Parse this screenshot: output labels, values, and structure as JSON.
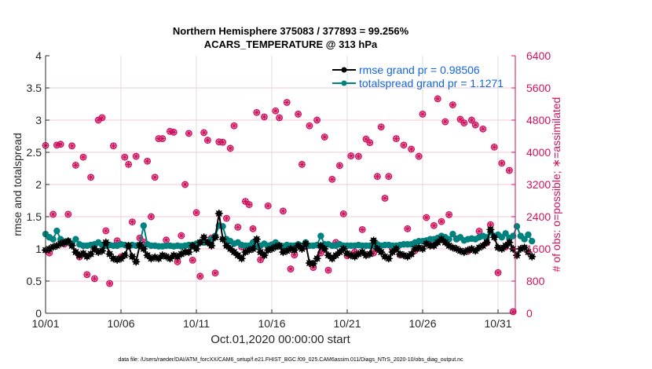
{
  "chart_data": {
    "type": "line",
    "title": "Northern Hemisphere 375083 / 377893 = 99.256%",
    "subtitle": "ACARS_TEMPERATURE @ 313 hPa",
    "xlabel": "Oct.01,2020 00:00:00 start",
    "ylabel": "rmse and totalspread",
    "y2label": "# of obs: o=possible; ∗=assimilated",
    "footer": "data file: /Users/raeder/DAI/ATM_forcXX/CAM6_setup/f.e21.FHIST_BGC.f09_025.CAM6assim.011/Diags_NTrS_2020-10/obs_diag_output.nc",
    "xlim_days": [
      1,
      32.1
    ],
    "ylim": [
      0,
      4
    ],
    "y2lim": [
      0,
      6400
    ],
    "x_ticks": [
      {
        "day": 1,
        "label": "10/01"
      },
      {
        "day": 6,
        "label": "10/06"
      },
      {
        "day": 11,
        "label": "10/11"
      },
      {
        "day": 16,
        "label": "10/16"
      },
      {
        "day": 21,
        "label": "10/21"
      },
      {
        "day": 26,
        "label": "10/26"
      },
      {
        "day": 31,
        "label": "10/31"
      }
    ],
    "y_ticks": [
      "0",
      "0.5",
      "1",
      "1.5",
      "2",
      "2.5",
      "3",
      "3.5",
      "4"
    ],
    "y2_ticks": [
      "0",
      "800",
      "1600",
      "2400",
      "3200",
      "4000",
      "4800",
      "5600",
      "6400"
    ],
    "grid": true,
    "legend_position": "top-right",
    "time_step_days": 0.25,
    "start_day": 1,
    "series": [
      {
        "name": "rmse grand pr = 0.98506",
        "color": "#000000",
        "values": [
          0.98,
          1.0,
          1.03,
          1.05,
          1.08,
          1.1,
          1.12,
          1.05,
          0.95,
          0.9,
          0.93,
          0.88,
          0.92,
          1.0,
          0.95,
          0.97,
          1.1,
          0.92,
          0.85,
          0.83,
          0.85,
          0.9,
          1.05,
          0.88,
          0.8,
          1.06,
          1.0,
          0.9,
          0.85,
          0.87,
          0.85,
          0.9,
          0.88,
          0.85,
          0.9,
          0.88,
          0.92,
          0.95,
          0.95,
          1.05,
          1.0,
          1.1,
          1.18,
          1.1,
          1.05,
          1.18,
          1.55,
          1.15,
          1.05,
          1.0,
          0.95,
          0.9,
          0.85,
          0.95,
          0.98,
          1.0,
          1.15,
          0.95,
          0.9,
          0.98,
          1.0,
          1.03,
          1.05,
          0.95,
          0.97,
          1.0,
          0.98,
          1.05,
          1.0,
          1.08,
          0.78,
          0.77,
          0.85,
          1.05,
          1.0,
          0.9,
          0.85,
          0.9,
          0.95,
          1.0,
          0.93,
          0.9,
          0.88,
          0.92,
          0.95,
          0.9,
          0.92,
          1.13,
          1.0,
          0.95,
          0.88,
          0.85,
          0.95,
          1.0,
          0.92,
          0.9,
          0.88,
          0.92,
          1.0,
          1.02,
          1.0,
          1.08,
          1.05,
          1.05,
          1.1,
          1.15,
          1.1,
          1.05,
          1.02,
          1.0,
          0.97,
          0.95,
          0.98,
          1.0,
          0.97,
          1.02,
          1.05,
          1.1,
          1.3,
          1.18,
          1.02,
          1.0,
          1.05,
          1.1,
          1.0,
          0.9,
          1.0,
          1.02,
          0.95,
          0.88
        ]
      },
      {
        "name": "totalspread grand pr = 1.1271",
        "color": "#00827f",
        "values": [
          1.23,
          1.18,
          1.15,
          1.28,
          1.15,
          1.1,
          1.12,
          1.08,
          1.15,
          1.07,
          1.05,
          1.05,
          1.06,
          1.07,
          1.1,
          1.06,
          1.05,
          1.06,
          1.05,
          1.05,
          1.07,
          1.06,
          1.05,
          1.06,
          1.05,
          1.06,
          1.36,
          1.07,
          1.05,
          1.05,
          1.04,
          1.04,
          1.05,
          1.05,
          1.04,
          1.05,
          1.04,
          1.05,
          1.06,
          1.06,
          1.08,
          1.1,
          1.1,
          1.1,
          1.15,
          1.2,
          1.36,
          1.35,
          1.15,
          1.12,
          1.08,
          1.1,
          1.06,
          1.05,
          1.05,
          1.1,
          1.03,
          1.05,
          1.08,
          1.05,
          1.06,
          1.1,
          1.05,
          1.04,
          1.06,
          1.05,
          1.05,
          1.07,
          1.05,
          1.1,
          1.05,
          1.05,
          1.06,
          1.2,
          1.07,
          1.07,
          1.05,
          1.05,
          1.07,
          1.05,
          1.05,
          1.05,
          1.05,
          1.06,
          1.05,
          1.05,
          1.05,
          1.05,
          1.07,
          1.05,
          1.06,
          1.06,
          1.05,
          1.05,
          1.06,
          1.07,
          1.07,
          1.07,
          1.1,
          1.12,
          1.12,
          1.13,
          1.15,
          1.15,
          1.17,
          1.2,
          1.18,
          1.15,
          1.23,
          1.15,
          1.18,
          1.13,
          1.15,
          1.16,
          1.15,
          1.18,
          1.2,
          1.18,
          1.26,
          1.2,
          1.22,
          1.18,
          1.24,
          1.17,
          1.2,
          1.35,
          1.2,
          1.15,
          1.22,
          1.12
        ]
      }
    ],
    "obs_count_series": {
      "color": "#d0115e",
      "axis": "right",
      "points": [
        [
          1.0,
          4170
        ],
        [
          1.25,
          1500
        ],
        [
          1.5,
          2460
        ],
        [
          1.75,
          4180
        ],
        [
          2.0,
          4200
        ],
        [
          2.25,
          1720
        ],
        [
          2.5,
          2460
        ],
        [
          2.75,
          4160
        ],
        [
          3.0,
          3680
        ],
        [
          3.25,
          1400
        ],
        [
          3.5,
          3880
        ],
        [
          3.75,
          960
        ],
        [
          4.0,
          3380
        ],
        [
          4.25,
          860
        ],
        [
          4.5,
          4800
        ],
        [
          4.75,
          4860
        ],
        [
          5.0,
          2050
        ],
        [
          5.25,
          740
        ],
        [
          5.5,
          4160
        ],
        [
          5.75,
          1800
        ],
        [
          6.0,
          1400
        ],
        [
          6.25,
          3880
        ],
        [
          6.5,
          3700
        ],
        [
          6.75,
          2270
        ],
        [
          7.0,
          3900
        ],
        [
          7.25,
          1870
        ],
        [
          7.5,
          1770
        ],
        [
          7.75,
          3780
        ],
        [
          8.0,
          2400
        ],
        [
          8.25,
          3380
        ],
        [
          8.5,
          4340
        ],
        [
          8.75,
          4340
        ],
        [
          9.0,
          1820
        ],
        [
          9.25,
          4520
        ],
        [
          9.5,
          4500
        ],
        [
          9.75,
          1280
        ],
        [
          10.0,
          1930
        ],
        [
          10.25,
          3200
        ],
        [
          10.5,
          4470
        ],
        [
          10.75,
          1320
        ],
        [
          11.0,
          2500
        ],
        [
          11.25,
          920
        ],
        [
          11.5,
          4490
        ],
        [
          11.75,
          4300
        ],
        [
          12.0,
          1870
        ],
        [
          12.25,
          1000
        ],
        [
          12.5,
          4260
        ],
        [
          12.75,
          4250
        ],
        [
          13.0,
          2360
        ],
        [
          13.25,
          4100
        ],
        [
          13.5,
          4660
        ],
        [
          13.75,
          2140
        ],
        [
          14.0,
          1650
        ],
        [
          14.25,
          2780
        ],
        [
          14.5,
          2700
        ],
        [
          14.75,
          2100
        ],
        [
          15.0,
          4990
        ],
        [
          15.25,
          1330
        ],
        [
          15.5,
          4880
        ],
        [
          15.75,
          2670
        ],
        [
          16.0,
          1700
        ],
        [
          16.25,
          5030
        ],
        [
          16.5,
          4860
        ],
        [
          16.75,
          2540
        ],
        [
          17.0,
          5240
        ],
        [
          17.25,
          1100
        ],
        [
          17.5,
          1450
        ],
        [
          17.75,
          4950
        ],
        [
          18.0,
          3700
        ],
        [
          18.25,
          1660
        ],
        [
          18.5,
          4660
        ],
        [
          18.75,
          1140
        ],
        [
          19.0,
          4800
        ],
        [
          19.25,
          1500
        ],
        [
          19.5,
          4380
        ],
        [
          19.75,
          1070
        ],
        [
          20.0,
          3330
        ],
        [
          20.25,
          1760
        ],
        [
          20.5,
          3670
        ],
        [
          20.75,
          2470
        ],
        [
          21.0,
          1430
        ],
        [
          21.25,
          3910
        ],
        [
          21.5,
          1520
        ],
        [
          21.75,
          3900
        ],
        [
          22.0,
          2080
        ],
        [
          22.25,
          4330
        ],
        [
          22.5,
          4240
        ],
        [
          22.75,
          1500
        ],
        [
          23.0,
          3400
        ],
        [
          23.25,
          4630
        ],
        [
          23.5,
          2860
        ],
        [
          23.75,
          3400
        ],
        [
          24.0,
          1600
        ],
        [
          24.25,
          4340
        ],
        [
          24.5,
          1450
        ],
        [
          24.75,
          4180
        ],
        [
          25.0,
          2100
        ],
        [
          25.25,
          4080
        ],
        [
          25.5,
          1560
        ],
        [
          25.75,
          3900
        ],
        [
          26.0,
          4950
        ],
        [
          26.25,
          2380
        ],
        [
          26.5,
          1740
        ],
        [
          26.75,
          2180
        ],
        [
          27.0,
          5330
        ],
        [
          27.25,
          2280
        ],
        [
          27.5,
          4760
        ],
        [
          27.75,
          2450
        ],
        [
          28.0,
          5180
        ],
        [
          28.25,
          1850
        ],
        [
          28.5,
          4820
        ],
        [
          28.75,
          4730
        ],
        [
          29.0,
          1540
        ],
        [
          29.25,
          4800
        ],
        [
          29.5,
          4680
        ],
        [
          29.75,
          2040
        ],
        [
          30.0,
          4580
        ],
        [
          30.25,
          1750
        ],
        [
          30.5,
          2200
        ],
        [
          30.75,
          4130
        ],
        [
          31.0,
          1010
        ],
        [
          31.25,
          3730
        ],
        [
          31.5,
          1650
        ],
        [
          31.75,
          3550
        ],
        [
          32.0,
          40
        ]
      ]
    }
  }
}
